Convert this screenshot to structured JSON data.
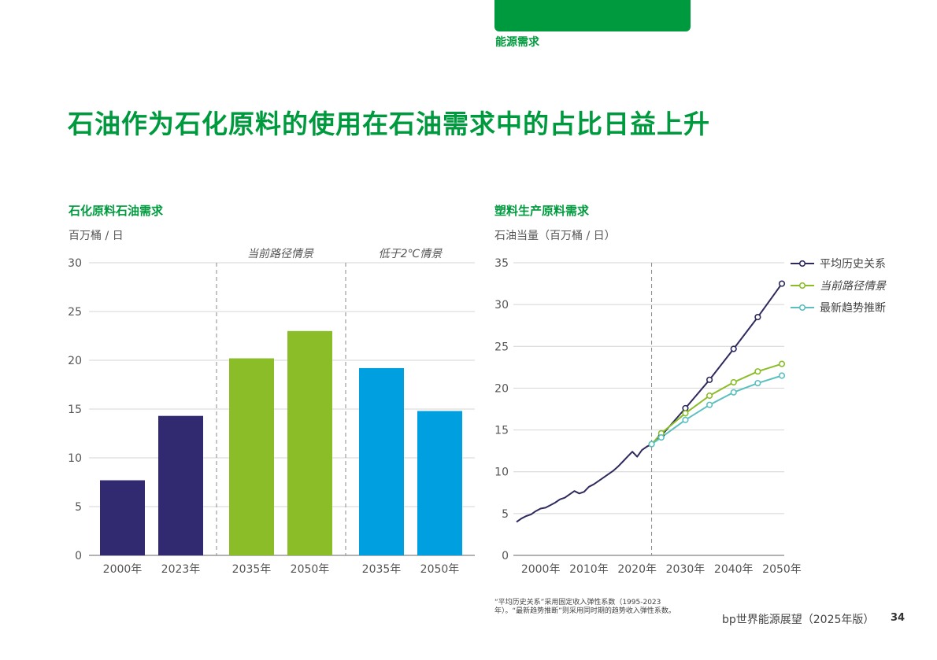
{
  "header": {
    "section_tag": "能源需求",
    "title": "石油作为石化原料的使用在石油需求中的占比日益上升"
  },
  "chart_data": [
    {
      "type": "bar",
      "title": "石化原料石油需求",
      "ylabel": "百万桶 / 日",
      "ylim": [
        0,
        30
      ],
      "yticks": [
        0,
        5,
        10,
        15,
        20,
        25,
        30
      ],
      "categories": [
        "2000年",
        "2023年",
        "2035年",
        "2050年",
        "2035年",
        "2050年"
      ],
      "values": [
        7.7,
        14.3,
        20.2,
        23.0,
        19.2,
        14.8
      ],
      "groups": [
        {
          "label": "",
          "indices": [
            0,
            1
          ]
        },
        {
          "label": "当前路径情景",
          "indices": [
            2,
            3
          ]
        },
        {
          "label": "低于2℃情景",
          "indices": [
            4,
            5
          ]
        }
      ],
      "colors": [
        "#312A70",
        "#312A70",
        "#8ABD27",
        "#8ABD27",
        "#009FDF",
        "#009FDF"
      ],
      "grid": true
    },
    {
      "type": "line",
      "title": "塑料生产原料需求",
      "ylabel": "石油当量（百万桶 / 日）",
      "ylim": [
        0,
        35
      ],
      "yticks": [
        0,
        5,
        10,
        15,
        20,
        25,
        30,
        35
      ],
      "xlim": [
        1995,
        2050
      ],
      "xticks": [
        2000,
        2010,
        2020,
        2030,
        2040,
        2050
      ],
      "xtick_labels": [
        "2000年",
        "2010年",
        "2020年",
        "2030年",
        "2040年",
        "2050年"
      ],
      "divider_x": 2023,
      "grid": true,
      "legend_position": "right",
      "series": [
        {
          "name": "平均历史关系",
          "color": "#2E2A5E",
          "marker_start": 2025,
          "points": [
            [
              1995,
              4.0
            ],
            [
              1996,
              4.4
            ],
            [
              1997,
              4.7
            ],
            [
              1998,
              4.9
            ],
            [
              1999,
              5.3
            ],
            [
              2000,
              5.6
            ],
            [
              2001,
              5.7
            ],
            [
              2002,
              6.0
            ],
            [
              2003,
              6.3
            ],
            [
              2004,
              6.7
            ],
            [
              2005,
              6.9
            ],
            [
              2006,
              7.3
            ],
            [
              2007,
              7.7
            ],
            [
              2008,
              7.4
            ],
            [
              2009,
              7.6
            ],
            [
              2010,
              8.2
            ],
            [
              2011,
              8.5
            ],
            [
              2012,
              8.9
            ],
            [
              2013,
              9.3
            ],
            [
              2014,
              9.7
            ],
            [
              2015,
              10.1
            ],
            [
              2016,
              10.6
            ],
            [
              2017,
              11.2
            ],
            [
              2018,
              11.8
            ],
            [
              2019,
              12.4
            ],
            [
              2020,
              11.8
            ],
            [
              2021,
              12.6
            ],
            [
              2022,
              13.0
            ],
            [
              2023,
              13.3
            ],
            [
              2025,
              14.3
            ],
            [
              2030,
              17.6
            ],
            [
              2035,
              21.0
            ],
            [
              2040,
              24.7
            ],
            [
              2045,
              28.5
            ],
            [
              2050,
              32.5
            ]
          ]
        },
        {
          "name": "当前路径情景",
          "color": "#8ABD27",
          "italic": true,
          "points": [
            [
              2023,
              13.3
            ],
            [
              2025,
              14.6
            ],
            [
              2030,
              17.0
            ],
            [
              2035,
              19.1
            ],
            [
              2040,
              20.7
            ],
            [
              2045,
              22.0
            ],
            [
              2050,
              22.9
            ]
          ]
        },
        {
          "name": "最新趋势推断",
          "color": "#5BBFBF",
          "points": [
            [
              2023,
              13.3
            ],
            [
              2025,
              14.1
            ],
            [
              2030,
              16.2
            ],
            [
              2035,
              18.0
            ],
            [
              2040,
              19.5
            ],
            [
              2045,
              20.6
            ],
            [
              2050,
              21.5
            ]
          ]
        }
      ]
    }
  ],
  "footnote": "“平均历史关系”采用固定收入弹性系数（1995-2023年）。“最新趋势推断”则采用同时期的趋势收入弹性系数。",
  "footer": {
    "publication": "bp世界能源展望（2025年版）",
    "page_number": "34"
  }
}
